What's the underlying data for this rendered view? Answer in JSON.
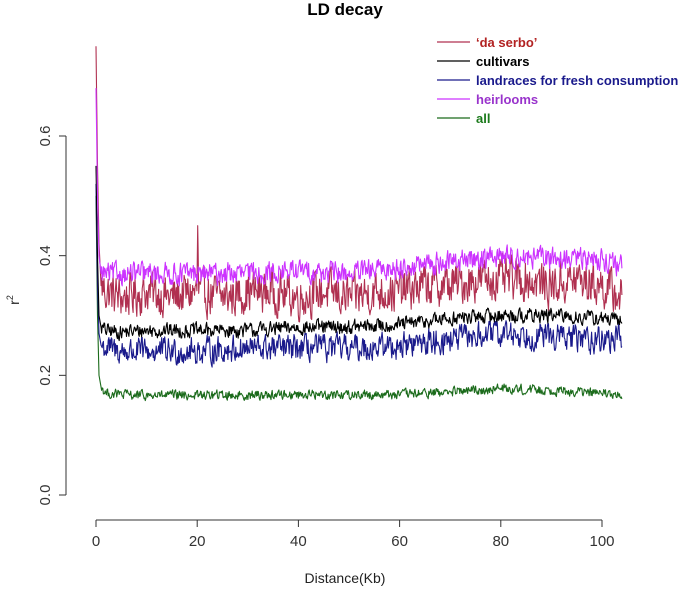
{
  "chart_data": {
    "type": "line",
    "title": "LD decay",
    "xlabel": "Distance(Kb)",
    "ylabel": "r",
    "ylabel_superscript": "2",
    "xlim": [
      0,
      105
    ],
    "ylim": [
      0,
      0.75
    ],
    "x_ticks": [
      "0",
      "20",
      "40",
      "60",
      "80",
      "100"
    ],
    "y_ticks": [
      "0.0",
      "0.2",
      "0.4",
      "0.6"
    ],
    "x_tick_values": [
      0,
      20,
      40,
      60,
      80,
      100
    ],
    "y_tick_values": [
      0.0,
      0.2,
      0.4,
      0.6
    ],
    "grid": false,
    "legend_position": "top-right",
    "series": [
      {
        "name": "‘da serbo’",
        "color": "#b03050",
        "label_color": "#b22222",
        "x": [
          0,
          0.3,
          0.6,
          1,
          2,
          5,
          10,
          15,
          20,
          20.1,
          20.3,
          25,
          30,
          35,
          40,
          45,
          50,
          55,
          60,
          65,
          70,
          75,
          80,
          85,
          90,
          95,
          100,
          104
        ],
        "values": [
          0.75,
          0.55,
          0.42,
          0.35,
          0.34,
          0.33,
          0.34,
          0.33,
          0.34,
          0.45,
          0.34,
          0.33,
          0.34,
          0.34,
          0.33,
          0.34,
          0.33,
          0.34,
          0.34,
          0.35,
          0.35,
          0.36,
          0.36,
          0.36,
          0.35,
          0.36,
          0.35,
          0.33
        ],
        "noise": 0.035
      },
      {
        "name": "cultivars",
        "color": "#000000",
        "label_color": "#000000",
        "x": [
          0,
          0.3,
          0.6,
          1,
          2,
          5,
          10,
          20,
          30,
          40,
          50,
          60,
          70,
          80,
          90,
          100,
          104
        ],
        "values": [
          0.55,
          0.4,
          0.3,
          0.28,
          0.275,
          0.272,
          0.275,
          0.275,
          0.275,
          0.28,
          0.28,
          0.285,
          0.295,
          0.3,
          0.3,
          0.295,
          0.29
        ],
        "noise": 0.012
      },
      {
        "name": "landraces for fresh consumption",
        "color": "#1a1a8c",
        "label_color": "#1a1a8c",
        "x": [
          0,
          0.3,
          0.6,
          1,
          2,
          5,
          10,
          20,
          30,
          40,
          50,
          60,
          70,
          80,
          90,
          100,
          104
        ],
        "values": [
          0.52,
          0.35,
          0.27,
          0.25,
          0.245,
          0.24,
          0.24,
          0.24,
          0.245,
          0.245,
          0.245,
          0.25,
          0.26,
          0.27,
          0.265,
          0.26,
          0.26
        ],
        "noise": 0.022
      },
      {
        "name": "heirlooms",
        "color": "#cc33ff",
        "label_color": "#9933cc",
        "x": [
          0,
          0.3,
          0.6,
          1,
          2,
          5,
          10,
          20,
          30,
          40,
          50,
          60,
          70,
          80,
          90,
          100,
          104
        ],
        "values": [
          0.68,
          0.5,
          0.4,
          0.37,
          0.37,
          0.37,
          0.37,
          0.37,
          0.37,
          0.375,
          0.37,
          0.38,
          0.39,
          0.4,
          0.395,
          0.395,
          0.38
        ],
        "noise": 0.018
      },
      {
        "name": "all",
        "color": "#1b6b1b",
        "label_color": "#1b7a1b",
        "x": [
          0,
          0.3,
          0.6,
          1,
          2,
          5,
          10,
          20,
          30,
          40,
          50,
          60,
          70,
          80,
          90,
          100,
          104
        ],
        "values": [
          0.5,
          0.3,
          0.2,
          0.18,
          0.17,
          0.168,
          0.166,
          0.167,
          0.167,
          0.168,
          0.168,
          0.168,
          0.172,
          0.178,
          0.175,
          0.17,
          0.165
        ],
        "noise": 0.008
      }
    ]
  }
}
